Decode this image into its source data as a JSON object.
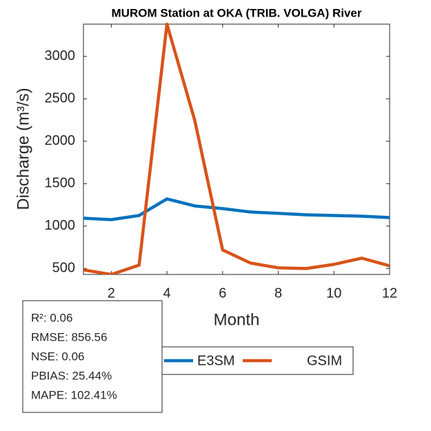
{
  "chart_data": {
    "type": "line",
    "title": "MUROM  Station at  OKA (TRIB. VOLGA)  River",
    "x_label": "Month",
    "y_label": "Discharge (m³/s)",
    "x": [
      1,
      2,
      3,
      4,
      5,
      6,
      7,
      8,
      9,
      10,
      11,
      12
    ],
    "series": [
      {
        "name": "E3SM",
        "color": "#0072bd",
        "values": [
          1093,
          1076,
          1125,
          1320,
          1238,
          1206,
          1166,
          1150,
          1133,
          1125,
          1117,
          1100
        ]
      },
      {
        "name": "GSIM",
        "color": "#d95319",
        "values": [
          484,
          430,
          540,
          3380,
          2245,
          719,
          565,
          508,
          500,
          549,
          622,
          532
        ]
      }
    ],
    "xlim": [
      1,
      12
    ],
    "xticks": [
      2,
      4,
      6,
      8,
      10,
      12
    ],
    "ylim": [
      430,
      3380
    ],
    "yticks": [
      500,
      1000,
      1500,
      2000,
      2500,
      3000
    ],
    "annotations": [
      "R²: 0.06",
      "RMSE: 856.56",
      "NSE: 0.06",
      "PBIAS: 25.44%",
      "MAPE: 102.41%"
    ]
  }
}
